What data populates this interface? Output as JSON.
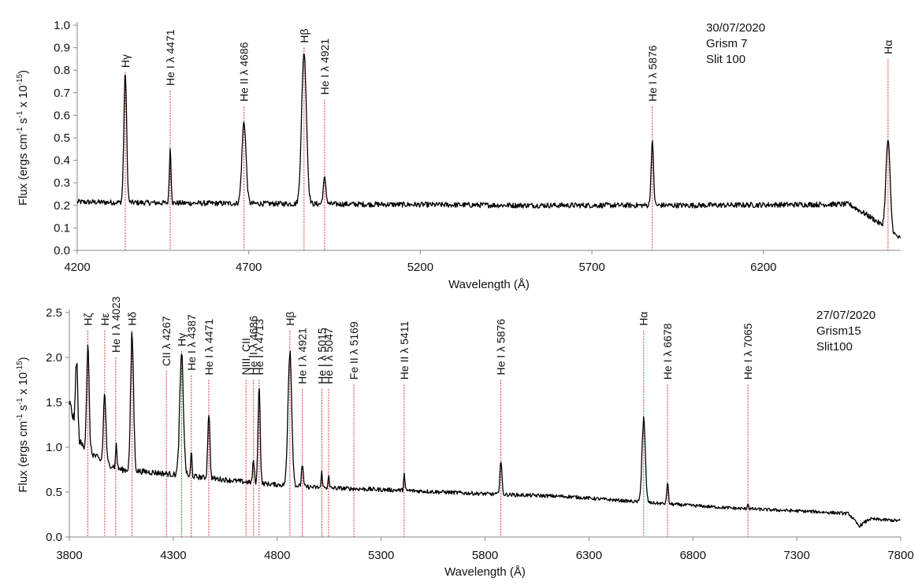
{
  "chart_data": [
    {
      "type": "line",
      "annotation": [
        "30/07/2020",
        "Grism 7",
        "Slit 100"
      ],
      "xlabel": "Wavelength (Å)",
      "ylabel_main": "Flux (ergs cm",
      "ylabel_exp1": "-1",
      "ylabel_mid": " s",
      "ylabel_exp2": "-1",
      "ylabel_end": " x 10",
      "ylabel_exp3": "-15",
      "ylabel_close": ")",
      "xlim": [
        4200,
        6600
      ],
      "ylim": [
        0,
        1.0
      ],
      "xticks": [
        4200,
        4700,
        5200,
        5700,
        6200
      ],
      "xtick_labels": [
        "4200",
        "4700",
        "5200",
        "5700",
        "6200"
      ],
      "yticks": [
        0,
        0.1,
        0.2,
        0.3,
        0.4,
        0.5,
        0.6,
        0.7,
        0.8,
        0.9,
        1.0
      ],
      "ytick_labels": [
        "0.0",
        "0.1",
        "0.2",
        "0.3",
        "0.4",
        "0.5",
        "0.6",
        "0.7",
        "0.8",
        "0.9",
        "1.0"
      ],
      "continuum": [
        [
          4200,
          0.215
        ],
        [
          4500,
          0.21
        ],
        [
          5000,
          0.205
        ],
        [
          5500,
          0.2
        ],
        [
          6000,
          0.2
        ],
        [
          6450,
          0.205
        ],
        [
          6520,
          0.14
        ],
        [
          6600,
          0.05
        ]
      ],
      "features": [
        {
          "x": 4340,
          "peak": 0.79,
          "width": 4
        },
        {
          "x": 4471,
          "peak": 0.45,
          "width": 2.5
        },
        {
          "x": 4686,
          "peak": 0.57,
          "width": 6
        },
        {
          "x": 4861,
          "peak": 0.88,
          "width": 7
        },
        {
          "x": 4921,
          "peak": 0.32,
          "width": 4
        },
        {
          "x": 5876,
          "peak": 0.48,
          "width": 3.5
        },
        {
          "x": 6563,
          "peak": 0.49,
          "width": 6
        }
      ],
      "lines": [
        {
          "label": "Hγ",
          "x": 4340,
          "top": 0.79
        },
        {
          "label": "He I λ 4471",
          "x": 4471,
          "top": 0.71
        },
        {
          "label": "He II λ 4686",
          "x": 4686,
          "top": 0.64
        },
        {
          "label": "Hβ",
          "x": 4861,
          "top": 0.9
        },
        {
          "label": "He I λ 4921",
          "x": 4921,
          "top": 0.67
        },
        {
          "label": "He I λ 5876",
          "x": 5876,
          "top": 0.64
        },
        {
          "label": "Hα",
          "x": 6563,
          "top": 0.85
        }
      ]
    },
    {
      "type": "line",
      "annotation": [
        "27/07/2020",
        "Grism15",
        "Slit100"
      ],
      "xlabel": "Wavelength (Å)",
      "ylabel_main": "Flux (ergs cm",
      "ylabel_exp1": "-1",
      "ylabel_mid": " s",
      "ylabel_exp2": "-1",
      "ylabel_end": " x 10",
      "ylabel_exp3": "-15",
      "ylabel_close": ")",
      "xlim": [
        3800,
        7800
      ],
      "ylim": [
        0,
        2.5
      ],
      "xticks": [
        3800,
        4300,
        4800,
        5300,
        5800,
        6300,
        6800,
        7300,
        7800
      ],
      "xtick_labels": [
        "3800",
        "4300",
        "4800",
        "5300",
        "5800",
        "6300",
        "6800",
        "7300",
        "7800"
      ],
      "yticks": [
        0,
        0.5,
        1.0,
        1.5,
        2.0,
        2.5
      ],
      "ytick_labels": [
        "0.0",
        "0.5",
        "1.0",
        "1.5",
        "2.0",
        "2.5"
      ],
      "continuum": [
        [
          3800,
          1.5
        ],
        [
          3850,
          1.05
        ],
        [
          3950,
          0.85
        ],
        [
          4050,
          0.75
        ],
        [
          4200,
          0.72
        ],
        [
          4500,
          0.65
        ],
        [
          4700,
          0.6
        ],
        [
          5000,
          0.55
        ],
        [
          5400,
          0.52
        ],
        [
          5800,
          0.48
        ],
        [
          6200,
          0.45
        ],
        [
          6600,
          0.38
        ],
        [
          7000,
          0.32
        ],
        [
          7400,
          0.28
        ],
        [
          7550,
          0.26
        ],
        [
          7600,
          0.12
        ],
        [
          7650,
          0.2
        ],
        [
          7800,
          0.18
        ]
      ],
      "features": [
        {
          "x": 3835,
          "peak": 2.0,
          "width": 5
        },
        {
          "x": 3889,
          "peak": 2.1,
          "width": 6
        },
        {
          "x": 3970,
          "peak": 1.6,
          "width": 6
        },
        {
          "x": 4026,
          "peak": 1.05,
          "width": 3
        },
        {
          "x": 4102,
          "peak": 2.25,
          "width": 7
        },
        {
          "x": 4340,
          "peak": 2.0,
          "width": 9
        },
        {
          "x": 4387,
          "peak": 0.95,
          "width": 3
        },
        {
          "x": 4471,
          "peak": 1.4,
          "width": 5
        },
        {
          "x": 4686,
          "peak": 0.85,
          "width": 4
        },
        {
          "x": 4713,
          "peak": 1.72,
          "width": 5
        },
        {
          "x": 4861,
          "peak": 2.1,
          "width": 9
        },
        {
          "x": 4921,
          "peak": 0.82,
          "width": 4
        },
        {
          "x": 5015,
          "peak": 0.72,
          "width": 3
        },
        {
          "x": 5047,
          "peak": 0.68,
          "width": 3
        },
        {
          "x": 5411,
          "peak": 0.7,
          "width": 3
        },
        {
          "x": 5876,
          "peak": 0.84,
          "width": 5
        },
        {
          "x": 6563,
          "peak": 1.3,
          "width": 8
        },
        {
          "x": 6678,
          "peak": 0.6,
          "width": 4
        },
        {
          "x": 7065,
          "peak": 0.38,
          "width": 3
        }
      ],
      "lines": [
        {
          "label": "Hζ",
          "x": 3889,
          "top": 2.3
        },
        {
          "label": "Hε",
          "x": 3970,
          "top": 2.3
        },
        {
          "label": "He I λ 4023",
          "x": 4023,
          "top": 2.0
        },
        {
          "label": "Hδ",
          "x": 4102,
          "top": 2.3
        },
        {
          "label": "CII λ 4267",
          "x": 4267,
          "top": 1.85
        },
        {
          "label": "Hγ",
          "x": 4340,
          "top": 2.07
        },
        {
          "label": "He I λ 4387",
          "x": 4387,
          "top": 1.8
        },
        {
          "label": "He I λ 4471",
          "x": 4471,
          "top": 1.75
        },
        {
          "label": "NIII, CII",
          "x": 4650,
          "top": 1.75
        },
        {
          "label": "He II λ 4686",
          "x": 4686,
          "top": 1.75
        },
        {
          "label": "He I λ 4713",
          "x": 4713,
          "top": 1.75
        },
        {
          "label": "Hβ",
          "x": 4861,
          "top": 2.3
        },
        {
          "label": "He I λ 4921",
          "x": 4921,
          "top": 1.65
        },
        {
          "label": "He I λ 5015",
          "x": 5015,
          "top": 1.65
        },
        {
          "label": "He I λ 5047",
          "x": 5047,
          "top": 1.65
        },
        {
          "label": "Fe II λ 5169",
          "x": 5169,
          "top": 1.7
        },
        {
          "label": "He II λ 5411",
          "x": 5411,
          "top": 1.7
        },
        {
          "label": "He I λ 5876",
          "x": 5876,
          "top": 1.75
        },
        {
          "label": "Hα",
          "x": 6563,
          "top": 2.3
        },
        {
          "label": "He I λ 6678",
          "x": 6678,
          "top": 1.7
        },
        {
          "label": "He I λ 7065",
          "x": 7065,
          "top": 1.7
        }
      ]
    }
  ]
}
